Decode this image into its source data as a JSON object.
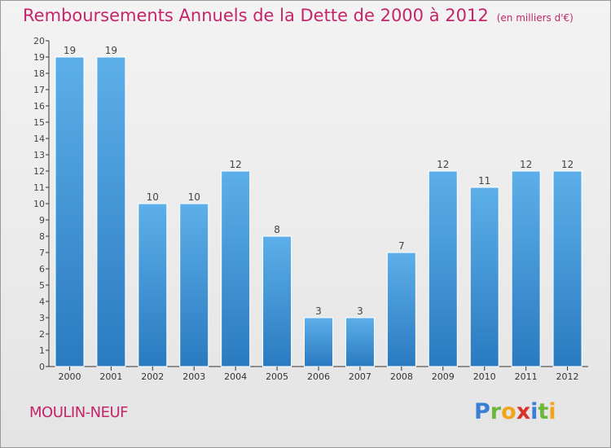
{
  "title": "Remboursements Annuels de la Dette de 2000 à 2012",
  "unit_note": "(en milliers d'€)",
  "commune": "MOULIN-NEUF",
  "logo_text": "Proxiti",
  "colors": {
    "title": "#c4256a",
    "bar_top": "#5dafe9",
    "bar_bottom": "#2a7ac0",
    "axis": "#333333"
  },
  "chart_data": {
    "type": "bar",
    "title": "Remboursements Annuels de la Dette de 2000 à 2012",
    "categories": [
      "2000",
      "2001",
      "2002",
      "2003",
      "2004",
      "2005",
      "2006",
      "2007",
      "2008",
      "2009",
      "2010",
      "2011",
      "2012"
    ],
    "values": [
      19,
      19,
      10,
      10,
      12,
      8,
      3,
      3,
      7,
      12,
      11,
      12,
      12
    ],
    "ylim": [
      0,
      20
    ],
    "yticks": [
      0,
      1,
      2,
      3,
      4,
      5,
      6,
      7,
      8,
      9,
      10,
      11,
      12,
      13,
      14,
      15,
      16,
      17,
      18,
      19,
      20
    ],
    "xlabel": "",
    "ylabel": "",
    "grid": false,
    "data_labels": true
  }
}
